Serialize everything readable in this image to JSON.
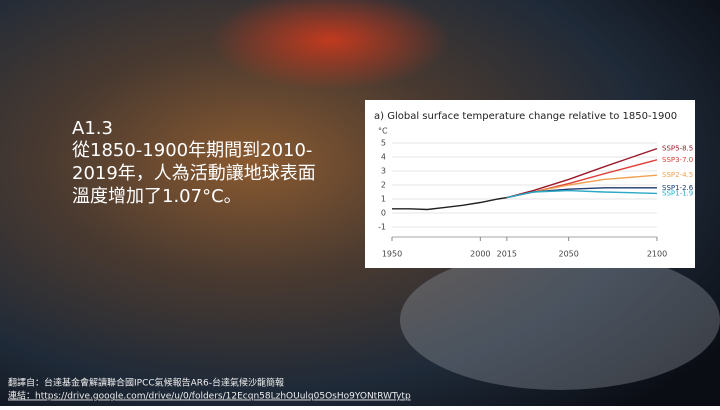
{
  "slide": {
    "heading": "A1.3",
    "body_lines": [
      "從1850-1900年期間到2010-",
      "2019年，人為活動讓地球表面",
      "溫度增加了1.07°C。"
    ],
    "footer": [
      "翻譯自：台達基金會解讀聯合國IPCC氣候報告AR6-台達氣候沙龍簡報",
      "連結：https://drive.google.com/drive/u/0/folders/12Ecqn58LzhOUulq05OsHo9YONtRWTytp"
    ]
  },
  "chart_data": {
    "type": "line",
    "title": "a) Global surface temperature change relative to 1850-1900",
    "y_label": "°C",
    "xlim": [
      1950,
      2100
    ],
    "xticks": [
      1950,
      2000,
      2015,
      2050,
      2100
    ],
    "ylim": [
      -1,
      5
    ],
    "yticks": [
      -1,
      0,
      1,
      2,
      3,
      4,
      5
    ],
    "grid": true,
    "series": [
      {
        "name": null,
        "color": "#222222",
        "x": [
          1950,
          1960,
          1970,
          1980,
          1990,
          2000,
          2010,
          2015
        ],
        "values": [
          0.3,
          0.3,
          0.25,
          0.4,
          0.55,
          0.75,
          1.0,
          1.1
        ]
      },
      {
        "name": "SSP5-8.5",
        "color": "#9b1a2a",
        "x": [
          2015,
          2030,
          2050,
          2070,
          2100
        ],
        "values": [
          1.1,
          1.6,
          2.4,
          3.3,
          4.6
        ]
      },
      {
        "name": "SSP3-7.0",
        "color": "#e0413a",
        "x": [
          2015,
          2030,
          2050,
          2070,
          2100
        ],
        "values": [
          1.1,
          1.5,
          2.1,
          2.8,
          3.8
        ]
      },
      {
        "name": "SSP2-4.5",
        "color": "#f0a050",
        "x": [
          2015,
          2030,
          2050,
          2070,
          2100
        ],
        "values": [
          1.1,
          1.5,
          2.0,
          2.4,
          2.7
        ]
      },
      {
        "name": "SSP1-2.6",
        "color": "#1e3a6e",
        "x": [
          2015,
          2030,
          2050,
          2070,
          2100
        ],
        "values": [
          1.1,
          1.5,
          1.7,
          1.8,
          1.8
        ]
      },
      {
        "name": "SSP1-1.9",
        "color": "#2ba9c6",
        "x": [
          2015,
          2030,
          2050,
          2070,
          2100
        ],
        "values": [
          1.1,
          1.5,
          1.6,
          1.5,
          1.4
        ]
      }
    ]
  }
}
